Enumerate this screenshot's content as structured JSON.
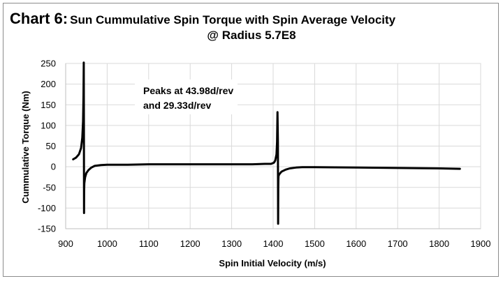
{
  "chart_data": {
    "type": "line",
    "tag": "Chart 6:",
    "title_line1": "Sun Cummulative Spin Torque with Spin Average Velocity",
    "title_line2": "@ Radius 5.7E8",
    "xlabel": "Spin Initial Velocity (m/s)",
    "ylabel": "Cummulative Torque (Nm)",
    "xlim": [
      900,
      1900
    ],
    "ylim": [
      -150,
      250
    ],
    "x_ticks": [
      900,
      1000,
      1100,
      1200,
      1300,
      1400,
      1500,
      1600,
      1700,
      1800,
      1900
    ],
    "y_ticks": [
      250,
      200,
      150,
      100,
      50,
      0,
      -50,
      -100,
      -150
    ],
    "grid": true,
    "annotation": [
      "Peaks at 43.98d/rev",
      "and 29.33d/rev"
    ],
    "series": [
      {
        "color": "#000000",
        "x": [
          918,
          925,
          932,
          937,
          940,
          942,
          943,
          943.6,
          944,
          944.2,
          944.4,
          945,
          946,
          947,
          950,
          955,
          962,
          970,
          985,
          1000,
          1050,
          1100,
          1200,
          1300,
          1350,
          1380,
          1395,
          1402,
          1405,
          1408,
          1409.5,
          1410.5,
          1411.5,
          1412,
          1412.3,
          1412.6,
          1413,
          1415,
          1420,
          1430,
          1440,
          1455,
          1470,
          1500,
          1600,
          1700,
          1800,
          1850
        ],
        "y": [
          18,
          22,
          30,
          45,
          70,
          110,
          170,
          252,
          100,
          -112,
          -60,
          -40,
          -32,
          -25,
          -15,
          -8,
          -2,
          2,
          4,
          5,
          5,
          6,
          6,
          6,
          6,
          7,
          7,
          10,
          15,
          30,
          60,
          132,
          60,
          -138,
          -50,
          -30,
          -22,
          -18,
          -12,
          -7,
          -4,
          -2,
          -1,
          -1,
          -2,
          -3,
          -4,
          -5
        ]
      }
    ]
  }
}
